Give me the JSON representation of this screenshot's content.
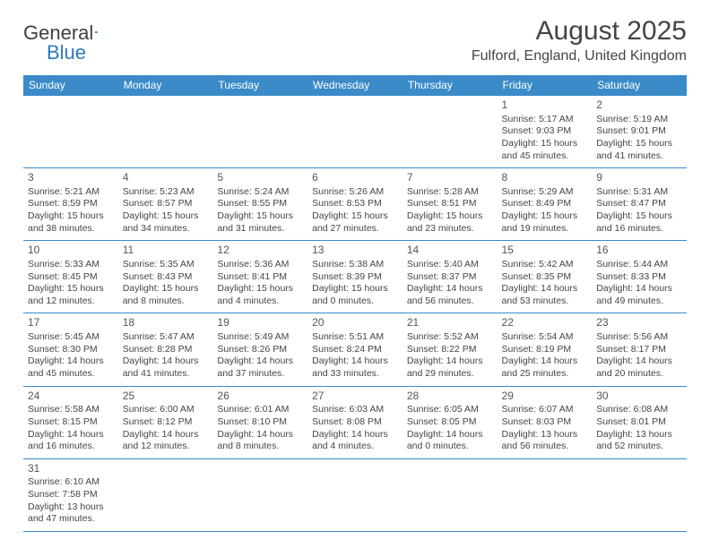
{
  "logo": {
    "text1": "General",
    "text2": "Blue",
    "brand_color": "#2b7bbf"
  },
  "header": {
    "month_title": "August 2025",
    "location": "Fulford, England, United Kingdom"
  },
  "colors": {
    "header_bg": "#3b8bc9",
    "header_text": "#ffffff",
    "cell_border": "#3b8bc9",
    "body_text": "#454545"
  },
  "weekdays": [
    "Sunday",
    "Monday",
    "Tuesday",
    "Wednesday",
    "Thursday",
    "Friday",
    "Saturday"
  ],
  "weeks": [
    [
      null,
      null,
      null,
      null,
      null,
      {
        "d": "1",
        "sr": "5:17 AM",
        "ss": "9:03 PM",
        "dl": "15 hours and 45 minutes."
      },
      {
        "d": "2",
        "sr": "5:19 AM",
        "ss": "9:01 PM",
        "dl": "15 hours and 41 minutes."
      }
    ],
    [
      {
        "d": "3",
        "sr": "5:21 AM",
        "ss": "8:59 PM",
        "dl": "15 hours and 38 minutes."
      },
      {
        "d": "4",
        "sr": "5:23 AM",
        "ss": "8:57 PM",
        "dl": "15 hours and 34 minutes."
      },
      {
        "d": "5",
        "sr": "5:24 AM",
        "ss": "8:55 PM",
        "dl": "15 hours and 31 minutes."
      },
      {
        "d": "6",
        "sr": "5:26 AM",
        "ss": "8:53 PM",
        "dl": "15 hours and 27 minutes."
      },
      {
        "d": "7",
        "sr": "5:28 AM",
        "ss": "8:51 PM",
        "dl": "15 hours and 23 minutes."
      },
      {
        "d": "8",
        "sr": "5:29 AM",
        "ss": "8:49 PM",
        "dl": "15 hours and 19 minutes."
      },
      {
        "d": "9",
        "sr": "5:31 AM",
        "ss": "8:47 PM",
        "dl": "15 hours and 16 minutes."
      }
    ],
    [
      {
        "d": "10",
        "sr": "5:33 AM",
        "ss": "8:45 PM",
        "dl": "15 hours and 12 minutes."
      },
      {
        "d": "11",
        "sr": "5:35 AM",
        "ss": "8:43 PM",
        "dl": "15 hours and 8 minutes."
      },
      {
        "d": "12",
        "sr": "5:36 AM",
        "ss": "8:41 PM",
        "dl": "15 hours and 4 minutes."
      },
      {
        "d": "13",
        "sr": "5:38 AM",
        "ss": "8:39 PM",
        "dl": "15 hours and 0 minutes."
      },
      {
        "d": "14",
        "sr": "5:40 AM",
        "ss": "8:37 PM",
        "dl": "14 hours and 56 minutes."
      },
      {
        "d": "15",
        "sr": "5:42 AM",
        "ss": "8:35 PM",
        "dl": "14 hours and 53 minutes."
      },
      {
        "d": "16",
        "sr": "5:44 AM",
        "ss": "8:33 PM",
        "dl": "14 hours and 49 minutes."
      }
    ],
    [
      {
        "d": "17",
        "sr": "5:45 AM",
        "ss": "8:30 PM",
        "dl": "14 hours and 45 minutes."
      },
      {
        "d": "18",
        "sr": "5:47 AM",
        "ss": "8:28 PM",
        "dl": "14 hours and 41 minutes."
      },
      {
        "d": "19",
        "sr": "5:49 AM",
        "ss": "8:26 PM",
        "dl": "14 hours and 37 minutes."
      },
      {
        "d": "20",
        "sr": "5:51 AM",
        "ss": "8:24 PM",
        "dl": "14 hours and 33 minutes."
      },
      {
        "d": "21",
        "sr": "5:52 AM",
        "ss": "8:22 PM",
        "dl": "14 hours and 29 minutes."
      },
      {
        "d": "22",
        "sr": "5:54 AM",
        "ss": "8:19 PM",
        "dl": "14 hours and 25 minutes."
      },
      {
        "d": "23",
        "sr": "5:56 AM",
        "ss": "8:17 PM",
        "dl": "14 hours and 20 minutes."
      }
    ],
    [
      {
        "d": "24",
        "sr": "5:58 AM",
        "ss": "8:15 PM",
        "dl": "14 hours and 16 minutes."
      },
      {
        "d": "25",
        "sr": "6:00 AM",
        "ss": "8:12 PM",
        "dl": "14 hours and 12 minutes."
      },
      {
        "d": "26",
        "sr": "6:01 AM",
        "ss": "8:10 PM",
        "dl": "14 hours and 8 minutes."
      },
      {
        "d": "27",
        "sr": "6:03 AM",
        "ss": "8:08 PM",
        "dl": "14 hours and 4 minutes."
      },
      {
        "d": "28",
        "sr": "6:05 AM",
        "ss": "8:05 PM",
        "dl": "14 hours and 0 minutes."
      },
      {
        "d": "29",
        "sr": "6:07 AM",
        "ss": "8:03 PM",
        "dl": "13 hours and 56 minutes."
      },
      {
        "d": "30",
        "sr": "6:08 AM",
        "ss": "8:01 PM",
        "dl": "13 hours and 52 minutes."
      }
    ],
    [
      {
        "d": "31",
        "sr": "6:10 AM",
        "ss": "7:58 PM",
        "dl": "13 hours and 47 minutes."
      },
      null,
      null,
      null,
      null,
      null,
      null
    ]
  ],
  "labels": {
    "sunrise": "Sunrise: ",
    "sunset": "Sunset: ",
    "daylight": "Daylight: "
  }
}
